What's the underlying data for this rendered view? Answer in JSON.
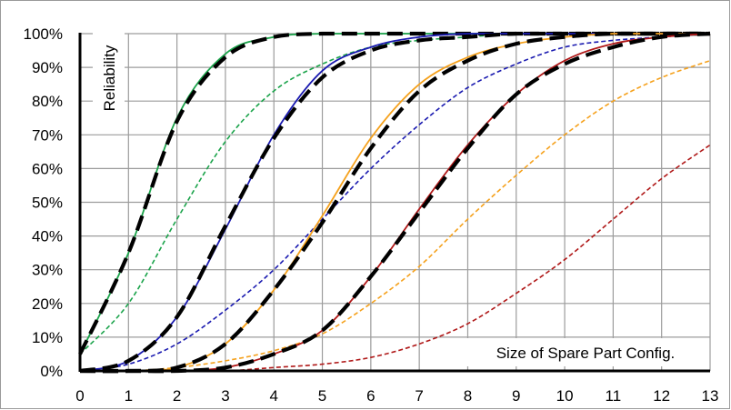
{
  "chart_data": {
    "type": "line",
    "title": "",
    "xlabel": "Size of Spare Part Config.",
    "ylabel": "Reliability",
    "xlim": [
      0,
      13
    ],
    "ylim": [
      0,
      1
    ],
    "x_ticks": [
      "0",
      "1",
      "2",
      "3",
      "4",
      "5",
      "6",
      "7",
      "8",
      "9",
      "10",
      "11",
      "12",
      "13"
    ],
    "y_ticks": [
      "0%",
      "10%",
      "20%",
      "30%",
      "40%",
      "50%",
      "60%",
      "70%",
      "80%",
      "90%",
      "100%"
    ],
    "grid": true,
    "legend": "none",
    "x": [
      0,
      1,
      2,
      3,
      4,
      5,
      6,
      7,
      8,
      9,
      10,
      11,
      12,
      13
    ],
    "series": [
      {
        "color": "#1aa34a",
        "style": "solid",
        "values": [
          0.05,
          0.35,
          0.75,
          0.94,
          0.99,
          1.0,
          1.0,
          1.0,
          1.0,
          1.0,
          1.0,
          1.0,
          1.0,
          1.0
        ]
      },
      {
        "color": "#1aa34a",
        "style": "dashed",
        "values": [
          0.05,
          0.2,
          0.45,
          0.68,
          0.83,
          0.91,
          0.96,
          0.98,
          0.99,
          1.0,
          1.0,
          1.0,
          1.0,
          1.0
        ]
      },
      {
        "color": "#000000",
        "style": "thick-dashed",
        "values": [
          0.05,
          0.35,
          0.74,
          0.93,
          0.99,
          1.0,
          1.0,
          1.0,
          1.0,
          1.0,
          1.0,
          1.0,
          1.0,
          1.0
        ]
      },
      {
        "color": "#1a1ab0",
        "style": "solid",
        "values": [
          0.0,
          0.03,
          0.16,
          0.42,
          0.7,
          0.89,
          0.96,
          0.99,
          1.0,
          1.0,
          1.0,
          1.0,
          1.0,
          1.0
        ]
      },
      {
        "color": "#1a1ab0",
        "style": "dashed",
        "values": [
          0.0,
          0.02,
          0.08,
          0.18,
          0.3,
          0.45,
          0.6,
          0.73,
          0.84,
          0.91,
          0.96,
          0.98,
          0.99,
          1.0
        ]
      },
      {
        "color": "#000000",
        "style": "thick-dashed",
        "values": [
          0.0,
          0.03,
          0.16,
          0.43,
          0.69,
          0.87,
          0.95,
          0.98,
          0.99,
          1.0,
          1.0,
          1.0,
          1.0,
          1.0
        ]
      },
      {
        "color": "#f5a11c",
        "style": "solid",
        "values": [
          0.0,
          0.0,
          0.01,
          0.08,
          0.24,
          0.46,
          0.69,
          0.85,
          0.93,
          0.97,
          0.99,
          1.0,
          1.0,
          1.0
        ]
      },
      {
        "color": "#f5a11c",
        "style": "dashed",
        "values": [
          0.0,
          0.0,
          0.01,
          0.03,
          0.06,
          0.11,
          0.2,
          0.31,
          0.45,
          0.58,
          0.7,
          0.8,
          0.87,
          0.92
        ]
      },
      {
        "color": "#000000",
        "style": "thick-dashed",
        "values": [
          0.0,
          0.0,
          0.01,
          0.08,
          0.24,
          0.44,
          0.66,
          0.83,
          0.92,
          0.97,
          0.99,
          1.0,
          1.0,
          1.0
        ]
      },
      {
        "color": "#b01818",
        "style": "solid",
        "values": [
          0.0,
          0.0,
          0.0,
          0.01,
          0.05,
          0.12,
          0.28,
          0.48,
          0.67,
          0.82,
          0.92,
          0.97,
          0.99,
          1.0
        ]
      },
      {
        "color": "#b01818",
        "style": "dashed",
        "values": [
          0.0,
          0.0,
          0.0,
          0.0,
          0.01,
          0.02,
          0.04,
          0.08,
          0.14,
          0.23,
          0.33,
          0.45,
          0.57,
          0.67
        ]
      },
      {
        "color": "#000000",
        "style": "thick-dashed",
        "values": [
          0.0,
          0.0,
          0.0,
          0.01,
          0.05,
          0.12,
          0.28,
          0.47,
          0.66,
          0.82,
          0.91,
          0.96,
          0.99,
          1.0
        ]
      }
    ]
  }
}
